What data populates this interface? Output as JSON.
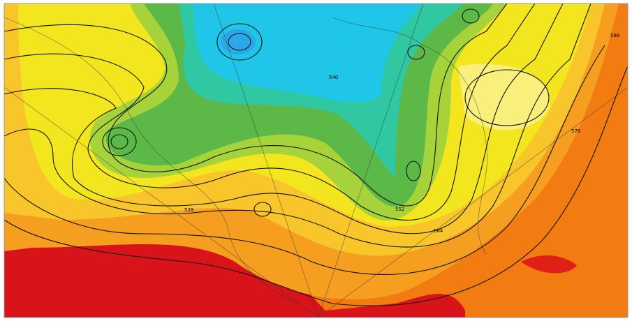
{
  "map": {
    "contour_labels": [
      "528",
      "540",
      "552",
      "564",
      "576",
      "588"
    ]
  }
}
